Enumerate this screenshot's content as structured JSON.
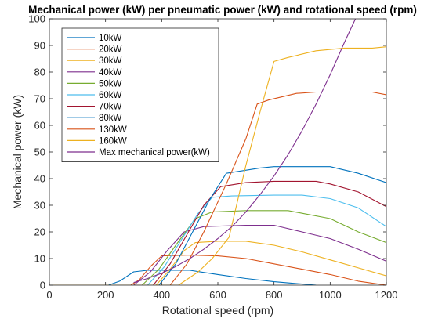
{
  "chart_data": {
    "type": "line",
    "title": "Mechanical power (kW) per pneumatic power (kW) and rotational speed (rpm)",
    "xlabel": "Rotational speed (rpm)",
    "ylabel": "Mechanical power (kW)",
    "xlim": [
      0,
      1200
    ],
    "ylim": [
      0,
      100
    ],
    "xticks": [
      0,
      200,
      400,
      600,
      800,
      1000,
      1200
    ],
    "yticks": [
      0,
      10,
      20,
      30,
      40,
      50,
      60,
      70,
      80,
      90,
      100
    ],
    "grid": false,
    "legend_position": "top-left",
    "series": [
      {
        "name": "10kW",
        "color": "#0072BD",
        "points": [
          [
            0,
            0
          ],
          [
            210,
            0
          ],
          [
            250,
            1.5
          ],
          [
            300,
            5
          ],
          [
            350,
            5.6
          ],
          [
            450,
            5.6
          ],
          [
            500,
            5.6
          ],
          [
            600,
            4
          ],
          [
            700,
            2.5
          ],
          [
            800,
            1.3
          ],
          [
            900,
            0.4
          ],
          [
            950,
            0
          ]
        ]
      },
      {
        "name": "20kW",
        "color": "#D95319",
        "points": [
          [
            0,
            0
          ],
          [
            290,
            0
          ],
          [
            320,
            2
          ],
          [
            360,
            7
          ],
          [
            400,
            11
          ],
          [
            500,
            11.3
          ],
          [
            600,
            11
          ],
          [
            700,
            10
          ],
          [
            800,
            8
          ],
          [
            900,
            6
          ],
          [
            1000,
            4
          ],
          [
            1100,
            1.5
          ],
          [
            1200,
            0
          ]
        ]
      },
      {
        "name": "30kW",
        "color": "#EDB120",
        "points": [
          [
            0,
            0
          ],
          [
            380,
            0
          ],
          [
            430,
            6
          ],
          [
            480,
            13
          ],
          [
            520,
            16
          ],
          [
            600,
            16.5
          ],
          [
            700,
            16.5
          ],
          [
            800,
            15
          ],
          [
            900,
            12.5
          ],
          [
            1000,
            9.5
          ],
          [
            1100,
            6.5
          ],
          [
            1200,
            3.5
          ]
        ]
      },
      {
        "name": "40kW",
        "color": "#7E2F8E",
        "points": [
          [
            0,
            0
          ],
          [
            300,
            0
          ],
          [
            360,
            5
          ],
          [
            420,
            13
          ],
          [
            480,
            20
          ],
          [
            550,
            22
          ],
          [
            700,
            22.5
          ],
          [
            800,
            22.5
          ],
          [
            900,
            20
          ],
          [
            1000,
            17.5
          ],
          [
            1100,
            13.5
          ],
          [
            1200,
            9
          ]
        ]
      },
      {
        "name": "50kW",
        "color": "#77AC30",
        "points": [
          [
            0,
            0
          ],
          [
            330,
            0
          ],
          [
            390,
            6
          ],
          [
            450,
            15
          ],
          [
            520,
            25
          ],
          [
            580,
            27.5
          ],
          [
            700,
            28
          ],
          [
            850,
            28
          ],
          [
            900,
            27
          ],
          [
            1000,
            25
          ],
          [
            1100,
            20
          ],
          [
            1200,
            16
          ]
        ]
      },
      {
        "name": "60kW",
        "color": "#4DBEEE",
        "points": [
          [
            0,
            0
          ],
          [
            350,
            0
          ],
          [
            410,
            7
          ],
          [
            470,
            17
          ],
          [
            530,
            27
          ],
          [
            580,
            33
          ],
          [
            650,
            33.5
          ],
          [
            800,
            33.8
          ],
          [
            900,
            33.8
          ],
          [
            1000,
            32.5
          ],
          [
            1100,
            29
          ],
          [
            1200,
            22
          ]
        ]
      },
      {
        "name": "70kW",
        "color": "#A2142F",
        "points": [
          [
            0,
            0
          ],
          [
            370,
            0
          ],
          [
            430,
            8
          ],
          [
            490,
            19
          ],
          [
            550,
            30
          ],
          [
            610,
            37
          ],
          [
            700,
            38.5
          ],
          [
            800,
            39
          ],
          [
            950,
            39
          ],
          [
            1000,
            38
          ],
          [
            1100,
            35
          ],
          [
            1200,
            29.5
          ]
        ]
      },
      {
        "name": "80kW",
        "color": "#0072BD",
        "points": [
          [
            0,
            0
          ],
          [
            390,
            0
          ],
          [
            450,
            8
          ],
          [
            510,
            20
          ],
          [
            570,
            32
          ],
          [
            630,
            42
          ],
          [
            750,
            44
          ],
          [
            800,
            44.5
          ],
          [
            1000,
            44.5
          ],
          [
            1100,
            42
          ],
          [
            1200,
            38.5
          ]
        ]
      },
      {
        "name": "130kW",
        "color": "#D95319",
        "points": [
          [
            0,
            0
          ],
          [
            430,
            0
          ],
          [
            490,
            8
          ],
          [
            550,
            20
          ],
          [
            630,
            38
          ],
          [
            700,
            55
          ],
          [
            740,
            68
          ],
          [
            780,
            69.5
          ],
          [
            880,
            72
          ],
          [
            950,
            72.5
          ],
          [
            1050,
            72.5
          ],
          [
            1150,
            72.5
          ],
          [
            1200,
            71.5
          ]
        ]
      },
      {
        "name": "160kW",
        "color": "#EDB120",
        "points": [
          [
            0,
            0
          ],
          [
            460,
            0
          ],
          [
            530,
            5
          ],
          [
            580,
            10
          ],
          [
            640,
            18
          ],
          [
            700,
            45
          ],
          [
            750,
            65
          ],
          [
            800,
            84
          ],
          [
            850,
            85.5
          ],
          [
            950,
            88
          ],
          [
            1050,
            89
          ],
          [
            1150,
            89
          ],
          [
            1200,
            89.5
          ]
        ]
      },
      {
        "name": "Max mechanical power(kW)",
        "color": "#7E2F8E",
        "points": [
          [
            300,
            1
          ],
          [
            350,
            2.5
          ],
          [
            400,
            4.5
          ],
          [
            450,
            7
          ],
          [
            500,
            10
          ],
          [
            550,
            13.5
          ],
          [
            600,
            17.5
          ],
          [
            650,
            22
          ],
          [
            700,
            27.5
          ],
          [
            750,
            34
          ],
          [
            800,
            41
          ],
          [
            850,
            49
          ],
          [
            900,
            58
          ],
          [
            950,
            68
          ],
          [
            1000,
            79
          ],
          [
            1050,
            91
          ],
          [
            1090,
            100
          ]
        ]
      }
    ]
  }
}
